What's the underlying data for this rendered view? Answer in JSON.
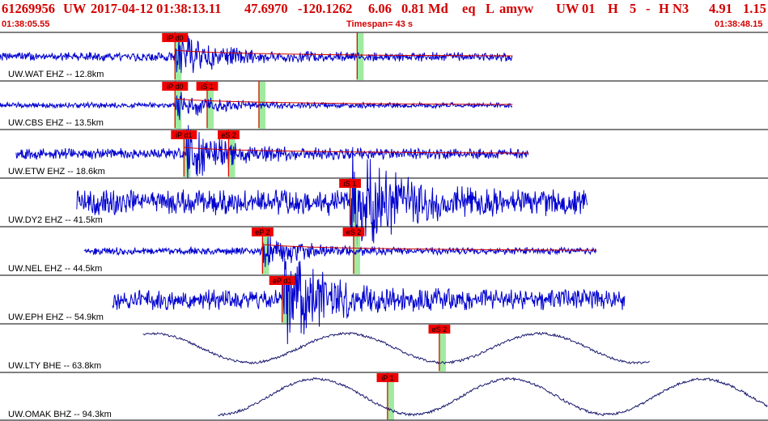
{
  "header": {
    "event_id": "61269956",
    "network": "UW",
    "origin_datetime": "2017-04-12 01:38:13.11",
    "lat": "47.6970",
    "lon": "-120.1262",
    "depth": "6.06",
    "magnitude": "0.81 Md",
    "event_type": "eq",
    "location_flag": "L",
    "solution": "amyw",
    "network2": "UW",
    "version": "01",
    "h_label": "H",
    "h_value": "5",
    "dash": "-",
    "quality": "H N3",
    "val1": "4.91",
    "val2": "1.15"
  },
  "timebar": {
    "start_time": "01:38:05.55",
    "timespan": "Timespan=  43 s",
    "end_time": "01:38:48.15"
  },
  "colors": {
    "title": "#d40000",
    "trace_blue": "#0000d0",
    "trace_navy": "#1a1a70",
    "pick_red": "#ee0000",
    "pick_band": "#8fe88f",
    "separator": "#000000",
    "coda_red": "#cc0000"
  },
  "chart_data": {
    "type": "line",
    "title": "61269956 UW 2017-04-12 01:38:13.11",
    "x_unit": "s",
    "xlim": [
      0,
      43
    ],
    "channels": [
      {
        "label": "UW.WAT EHZ -- 12.8km",
        "color": "trace_blue",
        "data_start": 0.0,
        "data_end": 28.7,
        "amp": 5,
        "picks": [
          {
            "label": "iP d0",
            "t": 9.8
          },
          {
            "label": "",
            "t": 20.0
          }
        ],
        "coda": true
      },
      {
        "label": "UW.CBS EHZ -- 13.5km",
        "color": "trace_blue",
        "data_start": 0.0,
        "data_end": 28.7,
        "amp": 3,
        "picks": [
          {
            "label": "iP d0",
            "t": 9.8
          },
          {
            "label": "iS 1",
            "t": 11.6
          },
          {
            "label": "",
            "t": 14.5
          }
        ],
        "coda": true
      },
      {
        "label": "UW.ETW EHZ -- 18.6km",
        "color": "trace_blue",
        "data_start": 0.9,
        "data_end": 29.6,
        "amp": 6,
        "picks": [
          {
            "label": "iP d1",
            "t": 10.3
          },
          {
            "label": "eS 2",
            "t": 12.8
          }
        ],
        "coda": true
      },
      {
        "label": "UW.DY2 EHZ -- 41.5km",
        "color": "trace_blue",
        "data_start": 4.3,
        "data_end": 32.9,
        "amp": 14,
        "picks": [
          {
            "label": "iS 1",
            "t": 19.6
          }
        ],
        "coda": false
      },
      {
        "label": "UW.NEL EHZ -- 44.5km",
        "color": "trace_blue",
        "data_start": 4.7,
        "data_end": 33.4,
        "amp": 4,
        "picks": [
          {
            "label": "eP 2",
            "t": 14.7
          },
          {
            "label": "eS 2",
            "t": 19.8
          }
        ],
        "coda": true
      },
      {
        "label": "UW.EPH EHZ -- 54.9km",
        "color": "trace_blue",
        "data_start": 6.3,
        "data_end": 35.0,
        "amp": 11,
        "picks": [
          {
            "label": "eP d1",
            "t": 15.8
          }
        ],
        "coda": false
      },
      {
        "label": "UW.LTY BHE -- 63.8km",
        "color": "trace_navy",
        "data_start": 8.0,
        "data_end": 36.4,
        "amp": 18,
        "picks": [
          {
            "label": "eS 2",
            "t": 24.6
          }
        ],
        "coda": false
      },
      {
        "label": "UW.OMAK BHZ -- 94.3km",
        "color": "trace_navy",
        "data_start": 12.2,
        "data_end": 43.0,
        "amp": 22,
        "picks": [
          {
            "label": "iP 1",
            "t": 21.7
          }
        ],
        "coda": false
      }
    ]
  }
}
